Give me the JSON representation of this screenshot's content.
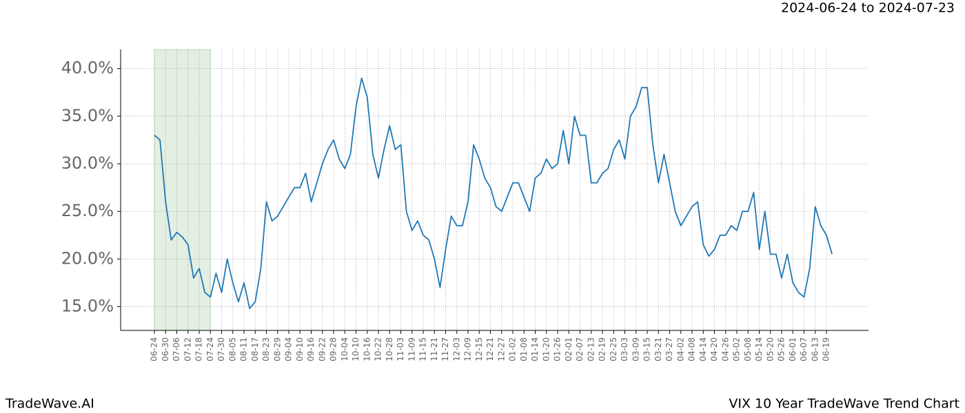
{
  "chart_data": {
    "type": "line",
    "subtitle": "2024-06-24 to 2024-07-23",
    "footer_left": "TradeWave.AI",
    "footer_right": "VIX 10 Year TradeWave Trend Chart",
    "categories": [
      "06-24",
      null,
      "06-30",
      null,
      "07-06",
      null,
      "07-12",
      null,
      "07-18",
      null,
      "07-24",
      null,
      "07-30",
      null,
      "08-05",
      null,
      "08-11",
      null,
      "08-17",
      null,
      "08-23",
      null,
      "08-29",
      null,
      "09-04",
      null,
      "09-10",
      null,
      "09-16",
      null,
      "09-22",
      null,
      "09-28",
      null,
      "10-04",
      null,
      "10-10",
      null,
      "10-16",
      null,
      "10-22",
      null,
      "10-28",
      null,
      "11-03",
      null,
      "11-09",
      null,
      "11-15",
      null,
      "11-21",
      null,
      "11-27",
      null,
      "12-03",
      null,
      "12-09",
      null,
      "12-15",
      null,
      "12-21",
      null,
      "12-27",
      null,
      "01-02",
      null,
      "01-08",
      null,
      "01-14",
      null,
      "01-20",
      null,
      "01-26",
      null,
      "02-01",
      null,
      "02-07",
      null,
      "02-13",
      null,
      "02-19",
      null,
      "02-25",
      null,
      "03-03",
      null,
      "03-09",
      null,
      "03-15",
      null,
      "03-21",
      null,
      "03-27",
      null,
      "04-02",
      null,
      "04-08",
      null,
      "04-14",
      null,
      "04-20",
      null,
      "04-26",
      null,
      "05-02",
      null,
      "05-08",
      null,
      "05-14",
      null,
      "05-20",
      null,
      "05-26",
      null,
      "06-01",
      null,
      "06-07",
      null,
      "06-13",
      null,
      "06-19",
      null
    ],
    "series": [
      {
        "color": "#1f77b4",
        "values": [
          33.0,
          32.5,
          26,
          22.0,
          22.8,
          22.3,
          21.5,
          18.0,
          19.0,
          16.5,
          16.0,
          18.5,
          16.5,
          20,
          17.5,
          15.5,
          17.5,
          14.8,
          15.5,
          19,
          26,
          24,
          24.5,
          25.5,
          26.5,
          27.5,
          27.5,
          29,
          26,
          28,
          30,
          31.5,
          32.5,
          30.5,
          29.5,
          31,
          36,
          39,
          37,
          31,
          28.5,
          31.5,
          34,
          31.5,
          32,
          25,
          23,
          24,
          22.5,
          22,
          20,
          17,
          21,
          24.5,
          23.5,
          23.5,
          26,
          32,
          30.5,
          28.5,
          27.5,
          25.5,
          25,
          26.5,
          28,
          28,
          26.5,
          25,
          28.5,
          29,
          30.5,
          29.5,
          30,
          33.5,
          30,
          35,
          33,
          33,
          28,
          28,
          29,
          29.5,
          31.5,
          32.5,
          30.5,
          35,
          36,
          38,
          38,
          32,
          28,
          31,
          28,
          25,
          23.5,
          24.5,
          25.5,
          26,
          21.5,
          20.3,
          21,
          22.5,
          22.5,
          23.5,
          23,
          25,
          25,
          27,
          21,
          25,
          20.5,
          20.5,
          18,
          20.5,
          17.5,
          16.5,
          16,
          19,
          25.5,
          23.5,
          22.5,
          20.5
        ]
      }
    ],
    "ylim": [
      12.5,
      42
    ],
    "yticks": [
      {
        "value": 15,
        "label": "15.0%"
      },
      {
        "value": 20,
        "label": "20.0%"
      },
      {
        "value": 25,
        "label": "25.0%"
      },
      {
        "value": 30,
        "label": "30.0%"
      },
      {
        "value": 35,
        "label": "35.0%"
      },
      {
        "value": 40,
        "label": "40.0%"
      }
    ],
    "grid": true
  }
}
